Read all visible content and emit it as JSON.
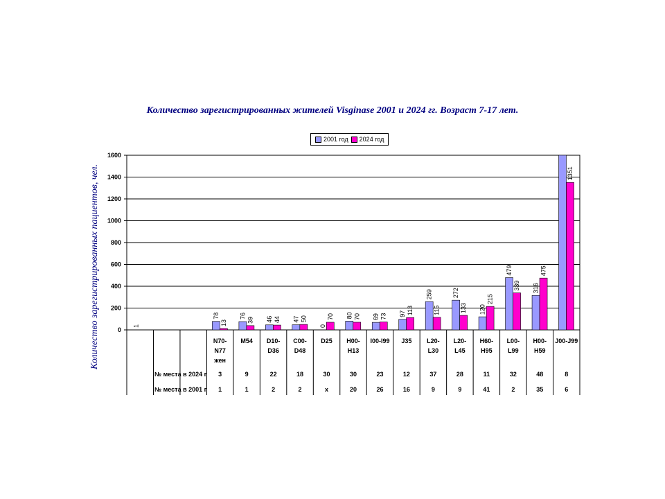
{
  "chart_data": {
    "type": "bar",
    "title": "Количество зарегистрированных жителей Visginase 2001 и 2024 гг. Возраст 7-17 лет.",
    "ylabel": "Количество зарегистрированных пациентов, чел.",
    "ylim": [
      0,
      1600
    ],
    "yticks": [
      0,
      200,
      400,
      600,
      800,
      1000,
      1200,
      1400,
      1600
    ],
    "categories": [
      [
        ""
      ],
      [
        ""
      ],
      [
        ""
      ],
      [
        "N70-",
        "N77",
        "жен"
      ],
      [
        "M54"
      ],
      [
        "D10-",
        "D36"
      ],
      [
        "C00-",
        "D48"
      ],
      [
        "D25"
      ],
      [
        "H00-",
        "H13"
      ],
      [
        "I00-I99"
      ],
      [
        "J35"
      ],
      [
        "L20-",
        "L30"
      ],
      [
        "L20-",
        "L45"
      ],
      [
        "H60-",
        "H95"
      ],
      [
        "L00-",
        "L99"
      ],
      [
        "H00-",
        "H59"
      ],
      [
        "J00-J99"
      ]
    ],
    "series": [
      {
        "name": "2001 год",
        "color": "#9999ff",
        "values": [
          1,
          null,
          null,
          78,
          76,
          46,
          47,
          0,
          80,
          69,
          97,
          259,
          272,
          120,
          479,
          316,
          1600
        ],
        "labels": [
          "1",
          "",
          "",
          "78",
          "76",
          "46",
          "47",
          "0",
          "80",
          "69",
          "97",
          "259",
          "272",
          "120",
          "479",
          "316",
          ""
        ]
      },
      {
        "name": "2024 год",
        "color": "#ff00cc",
        "values": [
          null,
          null,
          null,
          13,
          39,
          44,
          50,
          70,
          70,
          73,
          113,
          115,
          133,
          215,
          339,
          475,
          1351
        ],
        "labels": [
          "",
          "",
          "",
          "13",
          "39",
          "44",
          "50",
          "70",
          "70",
          "73",
          "113",
          "115",
          "133",
          "215",
          "339",
          "475",
          "1351"
        ]
      }
    ],
    "legend_position": "top",
    "grid": true,
    "table_rows": [
      {
        "label": "№ места в 2024 г",
        "values": [
          "",
          "",
          "",
          "3",
          "9",
          "22",
          "18",
          "30",
          "30",
          "23",
          "12",
          "37",
          "28",
          "11",
          "32",
          "48",
          "8"
        ]
      },
      {
        "label": "№ места в 2001 г",
        "values": [
          "",
          "",
          "",
          "1",
          "1",
          "2",
          "2",
          "x",
          "20",
          "26",
          "16",
          "9",
          "9",
          "41",
          "2",
          "35",
          "6"
        ]
      }
    ]
  }
}
